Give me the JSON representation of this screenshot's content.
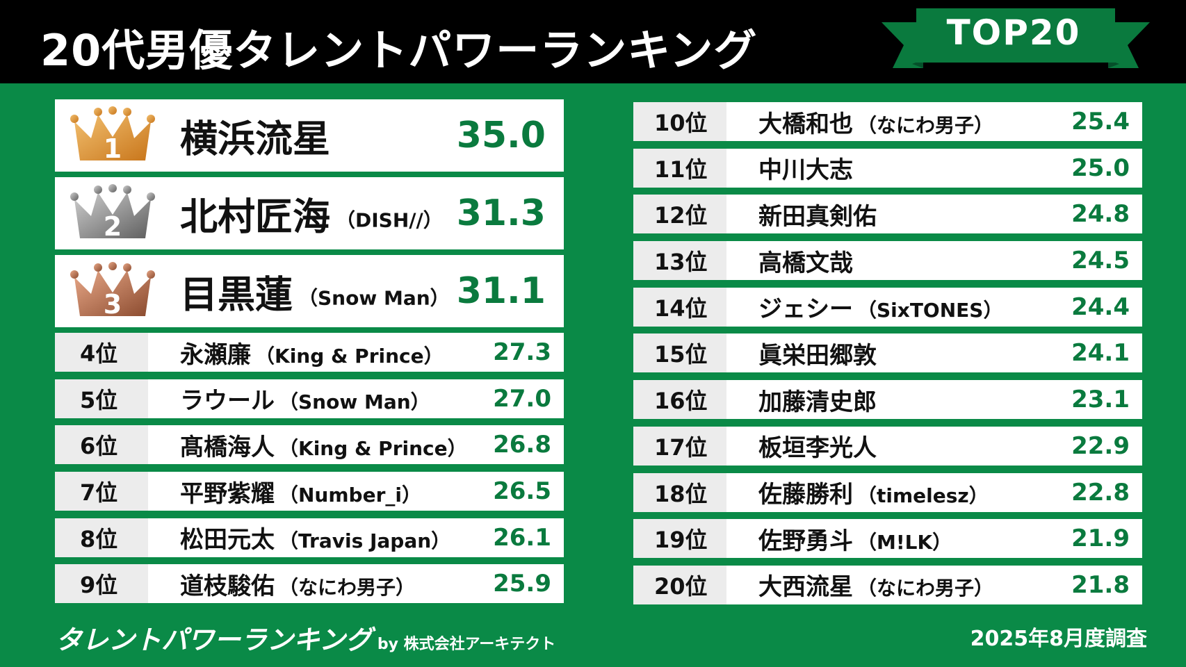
{
  "title": "20代男優タレントパワーランキング",
  "badge": "TOP20",
  "top3": [
    {
      "crown_label": "1",
      "name": "横浜流星",
      "group": "",
      "score": "35.0"
    },
    {
      "crown_label": "2",
      "name": "北村匠海",
      "group": "（DISH//）",
      "score": "31.3"
    },
    {
      "crown_label": "3",
      "name": "目黒蓮",
      "group": "（Snow Man）",
      "score": "31.1"
    }
  ],
  "left_rows": [
    {
      "rank": "4位",
      "name": "永瀬廉",
      "group": "（King & Prince）",
      "score": "27.3"
    },
    {
      "rank": "5位",
      "name": "ラウール",
      "group": "（Snow Man）",
      "score": "27.0"
    },
    {
      "rank": "6位",
      "name": "髙橋海人",
      "group": "（King & Prince）",
      "score": "26.8"
    },
    {
      "rank": "7位",
      "name": "平野紫耀",
      "group": "（Number_i）",
      "score": "26.5"
    },
    {
      "rank": "8位",
      "name": "松田元太",
      "group": "（Travis Japan）",
      "score": "26.1"
    },
    {
      "rank": "9位",
      "name": "道枝駿佑",
      "group": "（なにわ男子）",
      "score": "25.9"
    }
  ],
  "right_rows": [
    {
      "rank": "10位",
      "name": "大橋和也",
      "group": "（なにわ男子）",
      "score": "25.4"
    },
    {
      "rank": "11位",
      "name": "中川大志",
      "group": "",
      "score": "25.0"
    },
    {
      "rank": "12位",
      "name": "新田真剣佑",
      "group": "",
      "score": "24.8"
    },
    {
      "rank": "13位",
      "name": "高橋文哉",
      "group": "",
      "score": "24.5"
    },
    {
      "rank": "14位",
      "name": "ジェシー",
      "group": "（SixTONES）",
      "score": "24.4"
    },
    {
      "rank": "15位",
      "name": "眞栄田郷敦",
      "group": "",
      "score": "24.1"
    },
    {
      "rank": "16位",
      "name": "加藤清史郎",
      "group": "",
      "score": "23.1"
    },
    {
      "rank": "17位",
      "name": "板垣李光人",
      "group": "",
      "score": "22.9"
    },
    {
      "rank": "18位",
      "name": "佐藤勝利",
      "group": "（timelesz）",
      "score": "22.8"
    },
    {
      "rank": "19位",
      "name": "佐野勇斗",
      "group": "（M!LK）",
      "score": "21.9"
    },
    {
      "rank": "20位",
      "name": "大西流星",
      "group": "（なにわ男子）",
      "score": "21.8"
    }
  ],
  "footer": {
    "logo": "タレントパワーランキング",
    "by": "by 株式会社アーキテクト",
    "date": "2025年8月度調査"
  },
  "colors": {
    "background": "#0a8a47",
    "header": "#000000",
    "score": "#0a7a3e",
    "gold": "#e0a040",
    "silver": "#9a9a9a",
    "bronze": "#c0785a"
  }
}
